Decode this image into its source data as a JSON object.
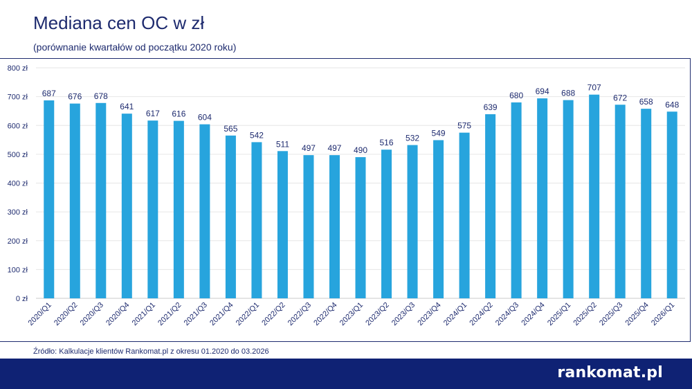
{
  "header": {
    "title": "Mediana cen OC w zł",
    "subtitle": "(porównanie kwartałów od początku 2020 roku)"
  },
  "source": "Źródło: Kalkulacje klientów Rankomat.pl z okresu 01.2020 do 03.2026",
  "footer": {
    "brand": "rankomat.pl"
  },
  "colors": {
    "bar": "#27a4dd",
    "text": "#1d2a6e",
    "footer": "#0f2274"
  },
  "chart_data": {
    "type": "bar",
    "title": "Mediana cen OC w zł",
    "subtitle": "(porównanie kwartałów od początku 2020 roku)",
    "categories": [
      "2020/Q1",
      "2020/Q2",
      "2020/Q3",
      "2020/Q4",
      "2021/Q1",
      "2021/Q2",
      "2021/Q3",
      "2021/Q4",
      "2022/Q1",
      "2022/Q2",
      "2022/Q3",
      "2022/Q4",
      "2023/Q1",
      "2023/Q2",
      "2023/Q3",
      "2023/Q4",
      "2024/Q1",
      "2024/Q2",
      "2024/Q3",
      "2024/Q4",
      "2025/Q1",
      "2025/Q2",
      "2025/Q3",
      "2025/Q4",
      "2026/Q1"
    ],
    "values": [
      687,
      676,
      678,
      641,
      617,
      616,
      604,
      565,
      542,
      511,
      497,
      497,
      490,
      516,
      532,
      549,
      575,
      639,
      680,
      694,
      688,
      707,
      672,
      658,
      648
    ],
    "ylim": [
      0,
      800
    ],
    "yticks": [
      0,
      100,
      200,
      300,
      400,
      500,
      600,
      700,
      800
    ],
    "ytick_labels": [
      "0 zł",
      "100 zł",
      "200 zł",
      "300 zł",
      "400 zł",
      "500 zł",
      "600 zł",
      "700 zł",
      "800 zł"
    ],
    "grid": true,
    "legend": "none"
  }
}
